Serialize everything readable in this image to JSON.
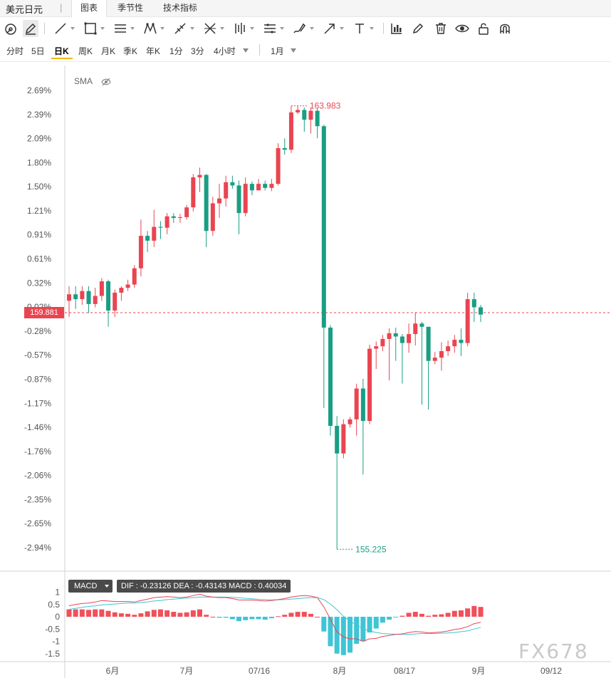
{
  "topbar": {
    "pair": "美元日元",
    "separator": "|",
    "tabs": [
      {
        "label": "图表",
        "active": true
      },
      {
        "label": "季节性",
        "active": false
      },
      {
        "label": "技术指标",
        "active": false
      }
    ]
  },
  "toolbar": {
    "tools": [
      "crosshair-icon",
      "pencil-icon",
      "line-icon",
      "rectangle-icon",
      "parallel-channel-icon",
      "pattern-icon",
      "ruler-icon",
      "fib-icon",
      "bars-icon",
      "horizontal-lines-icon",
      "brush-icon",
      "arrow-icon",
      "text-icon",
      "indicator-icon",
      "edit-icon",
      "trash-icon",
      "eye-icon",
      "unlock-icon",
      "magnet-icon"
    ]
  },
  "periods": {
    "items": [
      "分时",
      "5日",
      "日K",
      "周K",
      "月K",
      "季K",
      "年K",
      "1分",
      "3分",
      "4小时"
    ],
    "active": "日K",
    "range": "1月"
  },
  "chart": {
    "indicator_label": "SMA",
    "last_price": "159.881",
    "high_label": "163.983",
    "low_label": "155.225",
    "watermark": "FX678",
    "colors": {
      "up": "#e94551",
      "down": "#1a9e83",
      "price_line": "#e94551",
      "dif": "#e94551",
      "dea": "#3ec5d6"
    }
  },
  "chart_data": {
    "type": "candlestick",
    "y_axis": {
      "unit": "percent",
      "ticks": [
        "2.69%",
        "2.39%",
        "2.09%",
        "1.80%",
        "1.50%",
        "1.21%",
        "0.91%",
        "0.61%",
        "0.32%",
        "0.02%",
        "-0.28%",
        "-0.57%",
        "-0.87%",
        "-1.17%",
        "-1.46%",
        "-1.76%",
        "-2.06%",
        "-2.35%",
        "-2.65%",
        "-2.94%"
      ],
      "range_pct": [
        -3.05,
        2.78
      ]
    },
    "x_axis": {
      "ticks": [
        "6月",
        "7月",
        "07/16",
        "8月",
        "08/17",
        "9月",
        "09/12"
      ]
    },
    "candles": [
      [
        0.1,
        0.18,
        0.28,
        -0.1
      ],
      [
        0.18,
        0.12,
        0.28,
        0.0
      ],
      [
        0.12,
        0.22,
        0.28,
        0.05
      ],
      [
        0.22,
        0.06,
        0.28,
        -0.05
      ],
      [
        0.06,
        0.16,
        0.26,
        0.02
      ],
      [
        0.16,
        0.34,
        0.38,
        0.1
      ],
      [
        0.34,
        -0.02,
        0.36,
        -0.22
      ],
      [
        -0.02,
        0.2,
        0.24,
        -0.1
      ],
      [
        0.2,
        0.26,
        0.28,
        0.1
      ],
      [
        0.26,
        0.3,
        0.36,
        0.22
      ],
      [
        0.3,
        0.5,
        0.54,
        0.26
      ],
      [
        0.5,
        0.9,
        1.1,
        0.4
      ],
      [
        0.9,
        0.84,
        0.96,
        0.7
      ],
      [
        0.84,
        1.01,
        1.22,
        0.76
      ],
      [
        1.01,
        1.0,
        1.08,
        0.86
      ],
      [
        1.0,
        1.14,
        1.18,
        0.92
      ],
      [
        1.14,
        1.12,
        1.18,
        1.06
      ],
      [
        1.12,
        1.13,
        1.17,
        1.06
      ],
      [
        1.13,
        1.25,
        1.28,
        1.1
      ],
      [
        1.25,
        1.62,
        1.66,
        1.2
      ],
      [
        1.62,
        1.65,
        1.74,
        1.44
      ],
      [
        1.65,
        0.96,
        1.66,
        0.76
      ],
      [
        0.96,
        1.3,
        1.38,
        0.9
      ],
      [
        1.3,
        1.36,
        1.54,
        1.12
      ],
      [
        1.36,
        1.56,
        1.64,
        1.26
      ],
      [
        1.56,
        1.52,
        1.64,
        1.48
      ],
      [
        1.52,
        1.18,
        1.58,
        0.92
      ],
      [
        1.18,
        1.54,
        1.62,
        1.14
      ],
      [
        1.54,
        1.46,
        1.57,
        1.4
      ],
      [
        1.46,
        1.54,
        1.6,
        1.46
      ],
      [
        1.54,
        1.49,
        1.58,
        1.46
      ],
      [
        1.49,
        1.54,
        1.6,
        1.45
      ],
      [
        1.54,
        1.98,
        2.04,
        1.52
      ],
      [
        1.98,
        1.96,
        2.1,
        1.9
      ],
      [
        1.96,
        2.42,
        2.5,
        1.92
      ],
      [
        2.42,
        2.45,
        2.5,
        2.4
      ],
      [
        2.45,
        2.33,
        2.48,
        2.18
      ],
      [
        2.33,
        2.44,
        2.48,
        2.16
      ],
      [
        2.44,
        2.25,
        2.47,
        2.1
      ],
      [
        2.25,
        -0.23,
        2.27,
        -1.22
      ],
      [
        -0.23,
        -1.44,
        -0.2,
        -1.56
      ],
      [
        -1.44,
        -1.78,
        -1.32,
        -2.96
      ],
      [
        -1.78,
        -1.42,
        -1.36,
        -1.84
      ],
      [
        -1.42,
        -1.36,
        -1.33,
        -1.46
      ],
      [
        -1.36,
        -0.98,
        -0.92,
        -1.56
      ],
      [
        -0.98,
        -1.38,
        -0.86,
        -2.04
      ],
      [
        -1.38,
        -0.49,
        -0.44,
        -1.42
      ],
      [
        -0.49,
        -0.46,
        -0.4,
        -0.74
      ],
      [
        -0.46,
        -0.37,
        -0.32,
        -0.52
      ],
      [
        -0.37,
        -0.3,
        -0.24,
        -0.88
      ],
      [
        -0.3,
        -0.34,
        -0.23,
        -0.64
      ],
      [
        -0.34,
        -0.42,
        -0.31,
        -0.92
      ],
      [
        -0.42,
        -0.31,
        -0.18,
        -0.54
      ],
      [
        -0.31,
        -0.18,
        -0.04,
        -0.45
      ],
      [
        -0.18,
        -0.22,
        -0.16,
        -1.18
      ],
      [
        -0.22,
        -0.64,
        -0.62,
        -1.24
      ],
      [
        -0.64,
        -0.6,
        -0.53,
        -0.68
      ],
      [
        -0.6,
        -0.52,
        -0.41,
        -0.76
      ],
      [
        -0.52,
        -0.46,
        -0.39,
        -0.58
      ],
      [
        -0.46,
        -0.38,
        -0.32,
        -0.54
      ],
      [
        -0.38,
        -0.42,
        -0.24,
        -0.58
      ],
      [
        -0.42,
        0.12,
        0.2,
        -0.46
      ],
      [
        0.12,
        0.02,
        0.2,
        -0.16
      ],
      [
        0.02,
        -0.07,
        0.05,
        -0.16
      ]
    ],
    "macd": {
      "dif": "-0.23126",
      "dea": "-0.43143",
      "macd": "0.40034",
      "y_ticks": [
        "1",
        "0.5",
        "0",
        "-0.5",
        "-1",
        "-1.5"
      ],
      "y_range": [
        -1.65,
        1.15
      ],
      "dif_line": [
        0.45,
        0.5,
        0.54,
        0.56,
        0.6,
        0.66,
        0.64,
        0.62,
        0.62,
        0.62,
        0.6,
        0.66,
        0.72,
        0.78,
        0.8,
        0.82,
        0.8,
        0.78,
        0.8,
        0.86,
        0.92,
        0.84,
        0.8,
        0.78,
        0.78,
        0.74,
        0.68,
        0.68,
        0.68,
        0.66,
        0.64,
        0.66,
        0.7,
        0.74,
        0.8,
        0.84,
        0.86,
        0.84,
        0.78,
        0.4,
        -0.1,
        -0.62,
        -0.82,
        -0.9,
        -0.9,
        -1.0,
        -0.9,
        -0.88,
        -0.8,
        -0.76,
        -0.72,
        -0.7,
        -0.64,
        -0.6,
        -0.62,
        -0.66,
        -0.64,
        -0.62,
        -0.58,
        -0.52,
        -0.48,
        -0.4,
        -0.28,
        -0.23
      ],
      "dea_line": [
        0.3,
        0.34,
        0.38,
        0.42,
        0.44,
        0.48,
        0.5,
        0.52,
        0.54,
        0.56,
        0.56,
        0.58,
        0.6,
        0.64,
        0.66,
        0.7,
        0.72,
        0.74,
        0.76,
        0.78,
        0.8,
        0.8,
        0.8,
        0.8,
        0.8,
        0.79,
        0.77,
        0.75,
        0.73,
        0.71,
        0.7,
        0.69,
        0.69,
        0.7,
        0.72,
        0.74,
        0.76,
        0.78,
        0.78,
        0.7,
        0.52,
        0.28,
        0.02,
        -0.18,
        -0.34,
        -0.48,
        -0.58,
        -0.64,
        -0.68,
        -0.7,
        -0.71,
        -0.72,
        -0.72,
        -0.7,
        -0.68,
        -0.68,
        -0.68,
        -0.67,
        -0.66,
        -0.64,
        -0.61,
        -0.57,
        -0.5,
        -0.43
      ],
      "hist": [
        0.3,
        0.3,
        0.3,
        0.28,
        0.3,
        0.3,
        0.24,
        0.18,
        0.14,
        0.12,
        0.08,
        0.14,
        0.22,
        0.28,
        0.3,
        0.26,
        0.2,
        0.16,
        0.18,
        0.26,
        0.3,
        0.08,
        0.0,
        -0.04,
        -0.04,
        -0.1,
        -0.18,
        -0.14,
        -0.1,
        -0.1,
        -0.12,
        -0.06,
        0.02,
        0.08,
        0.16,
        0.2,
        0.2,
        0.12,
        0.0,
        -0.6,
        -1.2,
        -1.5,
        -1.56,
        -1.46,
        -1.1,
        -1.0,
        -0.64,
        -0.48,
        -0.24,
        -0.12,
        -0.02,
        0.04,
        0.16,
        0.2,
        0.12,
        0.04,
        0.08,
        0.1,
        0.16,
        0.24,
        0.26,
        0.34,
        0.44,
        0.4
      ]
    }
  }
}
